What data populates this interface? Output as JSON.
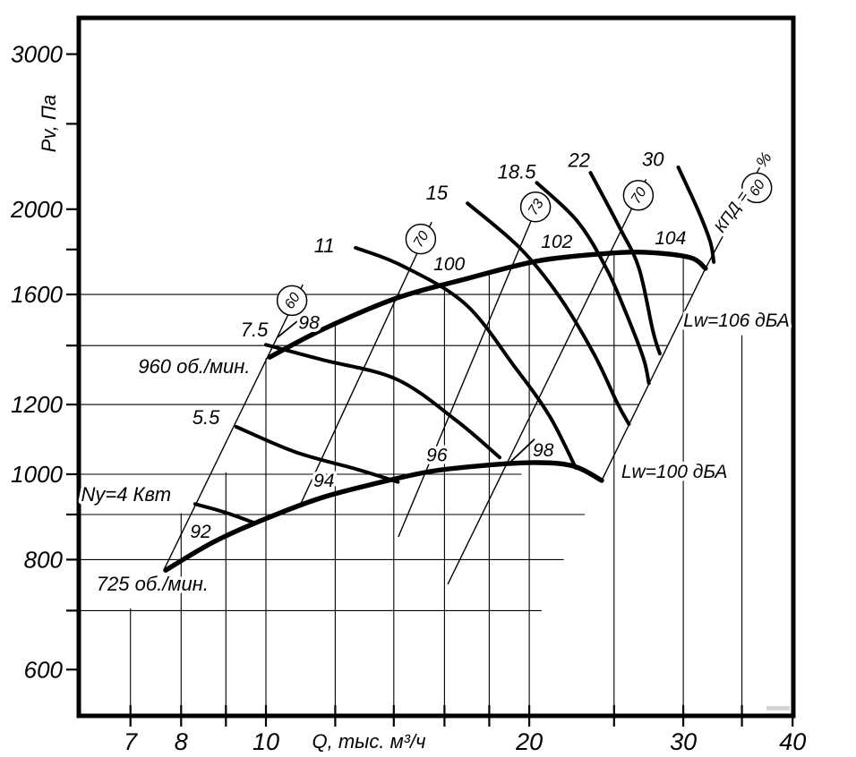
{
  "page": {
    "background": "#ffffff",
    "ink": "#000000"
  },
  "chart_data": {
    "type": "line",
    "title": "",
    "xlabel": "Q, тыс. м³/ч",
    "ylabel": "Pv, Па",
    "x_scale": "log",
    "y_scale": "log",
    "xlim": [
      6.11,
      39.9
    ],
    "ylim": [
      530,
      3300
    ],
    "x_ticks": [
      7,
      8,
      9,
      10,
      12,
      14,
      16,
      18,
      20,
      25,
      30,
      35,
      40
    ],
    "x_tick_labels": [
      7,
      8,
      10,
      20,
      30,
      40
    ],
    "y_ticks": [
      600,
      700,
      800,
      900,
      1000,
      1200,
      1400,
      1600,
      1800,
      2000,
      2500,
      3000
    ],
    "y_tick_labels": [
      600,
      800,
      1000,
      1200,
      1600,
      2000,
      3000
    ],
    "grid": {
      "horizontal": [
        {
          "p": 1600,
          "q1": 6.11,
          "q2": 30.7
        },
        {
          "p": 1400,
          "q1": 6.11,
          "q2": 28.75
        },
        {
          "p": 1200,
          "q1": 6.11,
          "q2": 26.7
        },
        {
          "p": 1000,
          "q1": 6.11,
          "q2": 19.6
        },
        {
          "p": 900,
          "q1": 6.11,
          "q2": 23.15
        },
        {
          "p": 800,
          "q1": 6.11,
          "q2": 21.9
        },
        {
          "p": 700,
          "q1": 6.11,
          "q2": 20.66
        }
      ],
      "vertical": [
        {
          "q": 7,
          "p1": 704,
          "p2": 531
        },
        {
          "q": 8,
          "p1": 903,
          "p2": 531
        },
        {
          "q": 9,
          "p1": 1005,
          "p2": 531
        },
        {
          "q": 10,
          "p1": 1355,
          "p2": 531
        },
        {
          "q": 12,
          "p1": 1478,
          "p2": 531
        },
        {
          "q": 14,
          "p1": 1585,
          "p2": 531
        },
        {
          "q": 16,
          "p1": 1646,
          "p2": 531
        },
        {
          "q": 18,
          "p1": 1700,
          "p2": 531
        },
        {
          "q": 20,
          "p1": 1738,
          "p2": 531
        },
        {
          "q": 25,
          "p1": 1782,
          "p2": 531
        },
        {
          "q": 30,
          "p1": 1770,
          "p2": 531
        },
        {
          "q": 35,
          "p1": 1438,
          "p2": 531
        }
      ]
    },
    "speed_curves": [
      {
        "name": "960 об./мин.",
        "label_at": {
          "q": 8.28,
          "p": 1324
        },
        "points": [
          [
            10.1,
            1358
          ],
          [
            11.6,
            1460
          ],
          [
            14.1,
            1585
          ],
          [
            16.9,
            1666
          ],
          [
            20.4,
            1746
          ],
          [
            24.1,
            1779
          ],
          [
            27.1,
            1787
          ],
          [
            30.5,
            1763
          ],
          [
            31.8,
            1713
          ]
        ]
      },
      {
        "name": "725 об./мин.",
        "label_at": {
          "q": 7.42,
          "p": 750
        },
        "points": [
          [
            7.68,
            778
          ],
          [
            8.74,
            839
          ],
          [
            10.07,
            893
          ],
          [
            11.6,
            941
          ],
          [
            13.4,
            977
          ],
          [
            15.4,
            1007
          ],
          [
            17.7,
            1023
          ],
          [
            20.4,
            1031
          ],
          [
            22.5,
            1021
          ],
          [
            24.2,
            984
          ]
        ]
      }
    ],
    "power_curves_kw": [
      {
        "label": "Ny=4 Квт",
        "value": 4,
        "label_at": {
          "q": 6.92,
          "p": 948
        },
        "points": [
          [
            8.3,
            925
          ],
          [
            8.95,
            906
          ],
          [
            9.72,
            880
          ]
        ]
      },
      {
        "label": "5.5",
        "value": 5.5,
        "label_at": {
          "q": 8.54,
          "p": 1159
        },
        "points": [
          [
            9.25,
            1132
          ],
          [
            10.8,
            1060
          ],
          [
            12.75,
            1012
          ],
          [
            14.15,
            980
          ]
        ]
      },
      {
        "label": "7.5",
        "value": 7.5,
        "label_at": {
          "q": 9.7,
          "p": 1458
        },
        "points": [
          [
            10.0,
            1403
          ],
          [
            11.6,
            1349
          ],
          [
            14.1,
            1282
          ],
          [
            16.5,
            1151
          ],
          [
            18.5,
            1045
          ]
        ]
      },
      {
        "label": "11",
        "value": 11,
        "label_at": {
          "q": 11.66,
          "p": 1816
        },
        "points": [
          [
            12.66,
            1808
          ],
          [
            14.3,
            1726
          ],
          [
            16.9,
            1561
          ],
          [
            19.25,
            1324
          ],
          [
            21.1,
            1164
          ],
          [
            22.6,
            1017
          ]
        ]
      },
      {
        "label": "15",
        "value": 15,
        "label_at": {
          "q": 15.68,
          "p": 2084
        },
        "points": [
          [
            17.0,
            2031
          ],
          [
            19.5,
            1808
          ],
          [
            21.6,
            1596
          ],
          [
            23.7,
            1371
          ],
          [
            25.2,
            1206
          ],
          [
            26.0,
            1140
          ]
        ]
      },
      {
        "label": "18.5",
        "value": 18.5,
        "label_at": {
          "q": 19.35,
          "p": 2204
        },
        "points": [
          [
            20.4,
            2143
          ],
          [
            22.7,
            1938
          ],
          [
            24.5,
            1713
          ],
          [
            25.8,
            1524
          ],
          [
            27.0,
            1356
          ],
          [
            27.4,
            1269
          ]
        ]
      },
      {
        "label": "22",
        "value": 22,
        "label_at": {
          "q": 22.8,
          "p": 2272
        },
        "points": [
          [
            23.5,
            2200
          ],
          [
            25.4,
            1902
          ],
          [
            26.7,
            1713
          ],
          [
            27.7,
            1453
          ],
          [
            28.2,
            1371
          ]
        ]
      },
      {
        "label": "30",
        "value": 30,
        "label_at": {
          "q": 27.7,
          "p": 2277
        },
        "points": [
          [
            29.6,
            2232
          ],
          [
            31.2,
            1993
          ],
          [
            32.2,
            1837
          ],
          [
            32.5,
            1742
          ]
        ]
      }
    ],
    "efficiency_lines": [
      {
        "value": "60",
        "circle_at": {
          "q": 10.71,
          "p": 1575
        },
        "points": [
          [
            7.64,
            778
          ],
          [
            11.02,
            1642
          ]
        ]
      },
      {
        "value": "70",
        "circle_at": {
          "q": 15.03,
          "p": 1850
        },
        "points": [
          [
            10.94,
            922
          ],
          [
            15.47,
            1934
          ]
        ]
      },
      {
        "value": "73",
        "circle_at": {
          "q": 20.33,
          "p": 2012
        },
        "points": [
          [
            14.17,
            849
          ],
          [
            20.67,
            2074
          ]
        ]
      },
      {
        "value": "70",
        "circle_at": {
          "q": 26.65,
          "p": 2074
        },
        "points": [
          [
            16.14,
            750
          ],
          [
            27.2,
            2163
          ]
        ]
      },
      {
        "value": "60",
        "circle_at": {
          "q": 36.4,
          "p": 2115
        },
        "points": [
          [
            24.2,
            984
          ],
          [
            31.8,
            1713
          ],
          [
            37.0,
            2266
          ]
        ]
      }
    ],
    "efficiency_axis_text": [
      {
        "text": "КПД =",
        "at": {
          "q": 34.45,
          "p": 1971
        },
        "rotate": -55
      },
      {
        "text": "%",
        "at": {
          "q": 37.5,
          "p": 2258
        },
        "rotate": -55
      }
    ],
    "noise_marks": [
      {
        "label": "98",
        "curve": "960",
        "label_at": {
          "q": 11.2,
          "p": 1486
        }
      },
      {
        "label": "100",
        "curve": "960",
        "label_at": {
          "q": 16.2,
          "p": 1733
        }
      },
      {
        "label": "102",
        "curve": "960",
        "label_at": {
          "q": 21.5,
          "p": 1837
        }
      },
      {
        "label": "104",
        "curve": "960",
        "label_at": {
          "q": 29.0,
          "p": 1854
        }
      },
      {
        "label": "92",
        "curve": "725",
        "label_at": {
          "q": 8.42,
          "p": 861
        }
      },
      {
        "label": "94",
        "curve": "725",
        "label_at": {
          "q": 11.65,
          "p": 984
        }
      },
      {
        "label": "96",
        "curve": "725",
        "label_at": {
          "q": 15.68,
          "p": 1052
        }
      },
      {
        "label": "98",
        "curve": "725",
        "label_at": {
          "q": 20.75,
          "p": 1065
        }
      }
    ],
    "branch_ticks": [
      {
        "a": {
          "q": 10.31,
          "p": 1431
        },
        "b": {
          "q": 11.12,
          "p": 1521
        }
      },
      {
        "a": {
          "q": 19.0,
          "p": 1031
        },
        "b": {
          "q": 20.28,
          "p": 1096
        }
      }
    ],
    "noise_level_labels": [
      {
        "text": "Lw=106 дБА",
        "at": {
          "q": 34.5,
          "p": 1496
        }
      },
      {
        "text": "Lw=100 дБА",
        "at": {
          "q": 29.3,
          "p": 1007
        }
      }
    ]
  }
}
